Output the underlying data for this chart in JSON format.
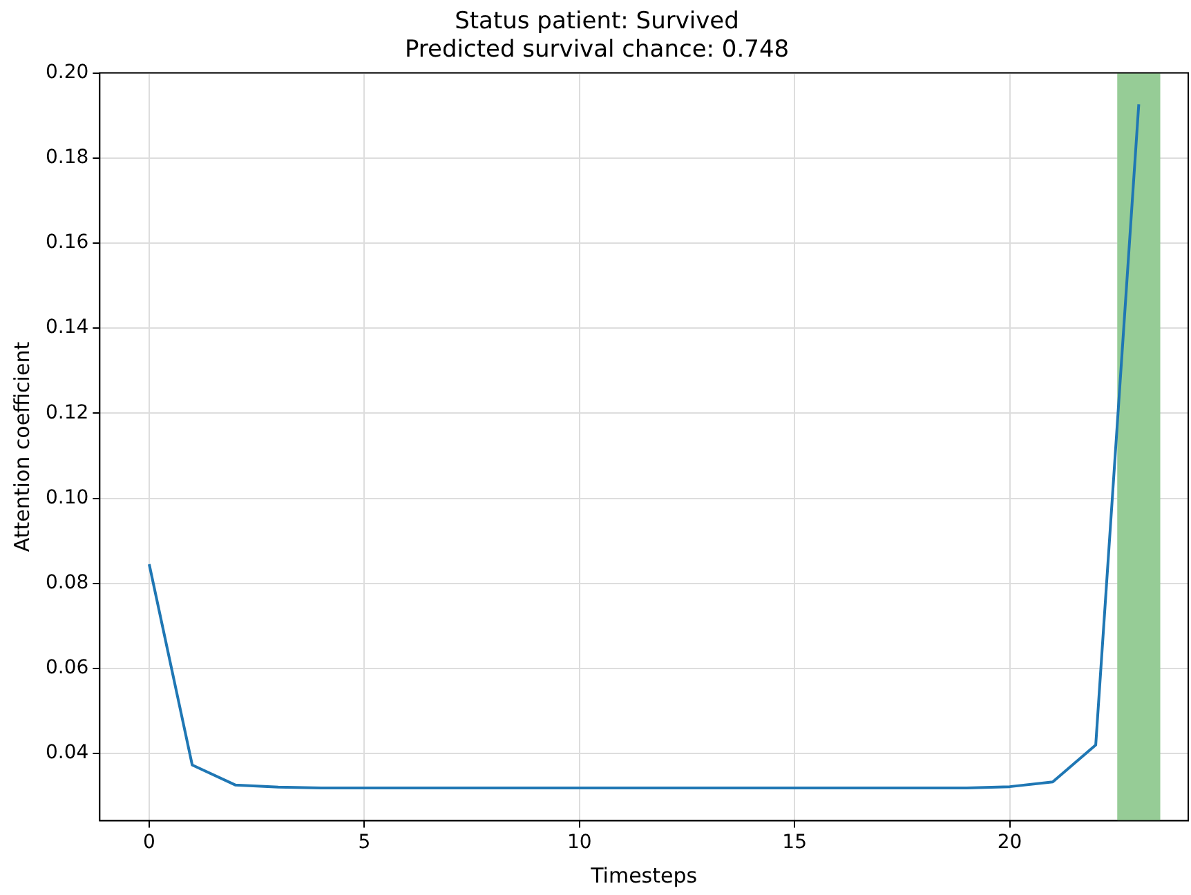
{
  "chart_data": {
    "type": "line",
    "title": "Status patient: Survived\nPredicted survival chance: 0.748",
    "xlabel": "Timesteps",
    "ylabel": "Attention coefficient",
    "x": [
      0,
      1,
      2,
      3,
      4,
      5,
      6,
      7,
      8,
      9,
      10,
      11,
      12,
      13,
      14,
      15,
      16,
      17,
      18,
      19,
      20,
      21,
      22,
      23
    ],
    "series": [
      {
        "color": "#1f77b4",
        "values": [
          0.0845,
          0.0373,
          0.0326,
          0.0321,
          0.0319,
          0.0319,
          0.0319,
          0.0319,
          0.0319,
          0.0319,
          0.0319,
          0.0319,
          0.0319,
          0.0319,
          0.0319,
          0.0319,
          0.0319,
          0.0319,
          0.0319,
          0.0319,
          0.0322,
          0.0333,
          0.042,
          0.1926
        ]
      }
    ],
    "xlim": [
      -1.15,
      24.15
    ],
    "xticks": [
      0,
      5,
      10,
      15,
      20
    ],
    "ylim": [
      0.0242,
      0.2
    ],
    "yticks": [
      {
        "value": 0.04,
        "label": "0.04"
      },
      {
        "value": 0.06,
        "label": "0.06"
      },
      {
        "value": 0.08,
        "label": "0.08"
      },
      {
        "value": 0.1,
        "label": "0.10"
      },
      {
        "value": 0.12,
        "label": "0.12"
      },
      {
        "value": 0.14,
        "label": "0.14"
      },
      {
        "value": 0.16,
        "label": "0.16"
      },
      {
        "value": 0.18,
        "label": "0.18"
      },
      {
        "value": 0.2,
        "label": "0.20"
      }
    ],
    "bands": [
      {
        "axis": "x",
        "from": 22.5,
        "to": 23.5,
        "color": "#96cc96"
      }
    ],
    "grid": true,
    "legend": false,
    "marker": "none",
    "line_style": "solid"
  }
}
